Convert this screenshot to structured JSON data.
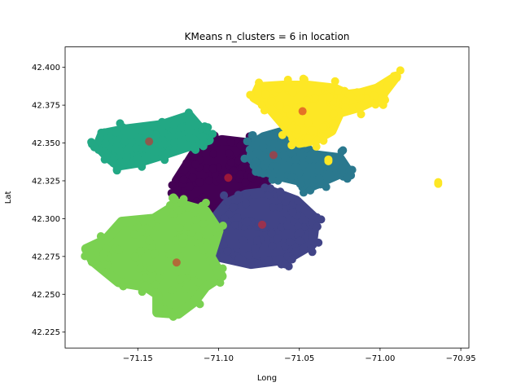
{
  "chart_data": {
    "type": "scatter",
    "title": "KMeans n_clusters = 6 in location",
    "xlabel": "Long",
    "ylabel": "Lat",
    "xlim": [
      -71.195,
      -70.945
    ],
    "ylim": [
      42.2145,
      42.4135
    ],
    "xticks": [
      -71.15,
      -71.1,
      -71.05,
      -71.0,
      -70.95
    ],
    "xtick_labels": [
      "−71.15",
      "−71.10",
      "−71.05",
      "−71.00",
      "−70.95"
    ],
    "yticks": [
      42.225,
      42.25,
      42.275,
      42.3,
      42.325,
      42.35,
      42.375,
      42.4
    ],
    "ytick_labels": [
      "42.225",
      "42.250",
      "42.275",
      "42.300",
      "42.325",
      "42.350",
      "42.375",
      "42.400"
    ],
    "grid": false,
    "legend": "none",
    "clusters": [
      {
        "color": "#440154",
        "center": [
          -71.094,
          42.327
        ],
        "region": [
          [
            -71.113,
            42.347
          ],
          [
            -71.098,
            42.352
          ],
          [
            -71.082,
            42.35
          ],
          [
            -71.073,
            42.339
          ],
          [
            -71.07,
            42.325
          ],
          [
            -71.079,
            42.31
          ],
          [
            -71.092,
            42.3
          ],
          [
            -71.104,
            42.299
          ],
          [
            -71.118,
            42.304
          ],
          [
            -71.126,
            42.313
          ],
          [
            -71.126,
            42.325
          ],
          [
            -71.12,
            42.335
          ]
        ]
      },
      {
        "color": "#414487",
        "center": [
          -71.073,
          42.296
        ],
        "region": [
          [
            -71.083,
            42.316
          ],
          [
            -71.067,
            42.318
          ],
          [
            -71.052,
            42.312
          ],
          [
            -71.04,
            42.3
          ],
          [
            -71.042,
            42.283
          ],
          [
            -71.058,
            42.273
          ],
          [
            -71.08,
            42.27
          ],
          [
            -71.101,
            42.275
          ],
          [
            -71.108,
            42.283
          ],
          [
            -71.105,
            42.297
          ],
          [
            -71.095,
            42.31
          ]
        ]
      },
      {
        "color": "#2a788e",
        "center": [
          -71.066,
          42.342
        ],
        "region": [
          [
            -71.072,
            42.354
          ],
          [
            -71.062,
            42.357
          ],
          [
            -71.05,
            42.35
          ],
          [
            -71.04,
            42.342
          ],
          [
            -71.025,
            42.34
          ],
          [
            -71.02,
            42.332
          ],
          [
            -71.035,
            42.325
          ],
          [
            -71.045,
            42.32
          ],
          [
            -71.05,
            42.325
          ],
          [
            -71.062,
            42.328
          ],
          [
            -71.073,
            42.332
          ],
          [
            -71.08,
            42.34
          ],
          [
            -71.078,
            42.35
          ]
        ]
      },
      {
        "color": "#22a884",
        "center": [
          -71.143,
          42.351
        ],
        "region": [
          [
            -71.175,
            42.348
          ],
          [
            -71.172,
            42.356
          ],
          [
            -71.158,
            42.359
          ],
          [
            -71.135,
            42.362
          ],
          [
            -71.118,
            42.368
          ],
          [
            -71.11,
            42.358
          ],
          [
            -71.106,
            42.352
          ],
          [
            -71.118,
            42.348
          ],
          [
            -71.135,
            42.342
          ],
          [
            -71.15,
            42.337
          ],
          [
            -71.162,
            42.335
          ],
          [
            -71.168,
            42.34
          ]
        ]
      },
      {
        "color": "#7ad151",
        "center": [
          -71.126,
          42.271
        ],
        "region": [
          [
            -71.17,
            42.286
          ],
          [
            -71.16,
            42.298
          ],
          [
            -71.14,
            42.3
          ],
          [
            -71.125,
            42.31
          ],
          [
            -71.108,
            42.305
          ],
          [
            -71.1,
            42.292
          ],
          [
            -71.105,
            42.275
          ],
          [
            -71.098,
            42.262
          ],
          [
            -71.108,
            42.255
          ],
          [
            -71.115,
            42.245
          ],
          [
            -71.125,
            42.237
          ],
          [
            -71.138,
            42.238
          ],
          [
            -71.138,
            42.25
          ],
          [
            -71.145,
            42.255
          ],
          [
            -71.162,
            42.258
          ],
          [
            -71.178,
            42.272
          ],
          [
            -71.182,
            42.28
          ]
        ]
      },
      {
        "color": "#fde725",
        "center": [
          -71.048,
          42.371
        ],
        "region": [
          [
            -71.075,
            42.387
          ],
          [
            -71.06,
            42.388
          ],
          [
            -71.045,
            42.388
          ],
          [
            -71.028,
            42.386
          ],
          [
            -71.02,
            42.382
          ],
          [
            -71.012,
            42.383
          ],
          [
            -71.002,
            42.386
          ],
          [
            -70.99,
            42.394
          ],
          [
            -71.0,
            42.38
          ],
          [
            -71.012,
            42.374
          ],
          [
            -71.025,
            42.37
          ],
          [
            -71.03,
            42.358
          ],
          [
            -71.04,
            42.352
          ],
          [
            -71.05,
            42.35
          ],
          [
            -71.058,
            42.36
          ],
          [
            -71.07,
            42.375
          ],
          [
            -71.078,
            42.38
          ]
        ],
        "outliers": [
          [
            -70.964,
            42.323
          ],
          [
            -71.032,
            42.338
          ]
        ]
      }
    ]
  }
}
